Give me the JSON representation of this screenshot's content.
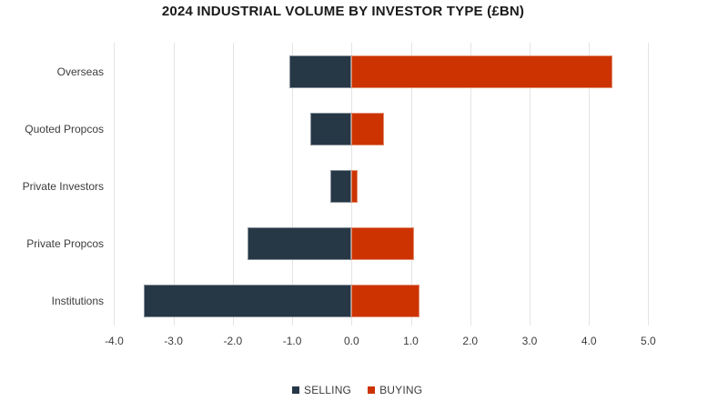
{
  "chart_data": {
    "type": "bar",
    "orientation": "horizontal",
    "title": "2024 INDUSTRIAL VOLUME BY INVESTOR TYPE (£BN)",
    "categories": [
      "Overseas",
      "Quoted Propcos",
      "Private Investors",
      "Private Propcos",
      "Institutions"
    ],
    "series": [
      {
        "name": "SELLING",
        "color": "#263746",
        "values": [
          -1.05,
          -0.7,
          -0.35,
          -1.75,
          -3.5
        ]
      },
      {
        "name": "BUYING",
        "color": "#cc3300",
        "values": [
          4.4,
          0.55,
          0.1,
          1.05,
          1.15
        ]
      }
    ],
    "x_ticks": [
      {
        "value": -4,
        "label": "-4.0"
      },
      {
        "value": -3,
        "label": "-3.0"
      },
      {
        "value": -2,
        "label": "-2.0"
      },
      {
        "value": -1,
        "label": "-1.0"
      },
      {
        "value": 0,
        "label": "0.0"
      },
      {
        "value": 1,
        "label": "1.0"
      },
      {
        "value": 2,
        "label": "2.0"
      },
      {
        "value": 3,
        "label": "3.0"
      },
      {
        "value": 4,
        "label": "4.0"
      },
      {
        "value": 5,
        "label": "5.0"
      }
    ],
    "xlim": [
      -4.4,
      6.3
    ],
    "grid": "vertical-only",
    "legend_position": "bottom-center",
    "colors": {
      "background": "#ffffff",
      "grid": "#e4e4e4",
      "text": "#3c3c3b",
      "title_text": "#1a1a1a"
    }
  }
}
